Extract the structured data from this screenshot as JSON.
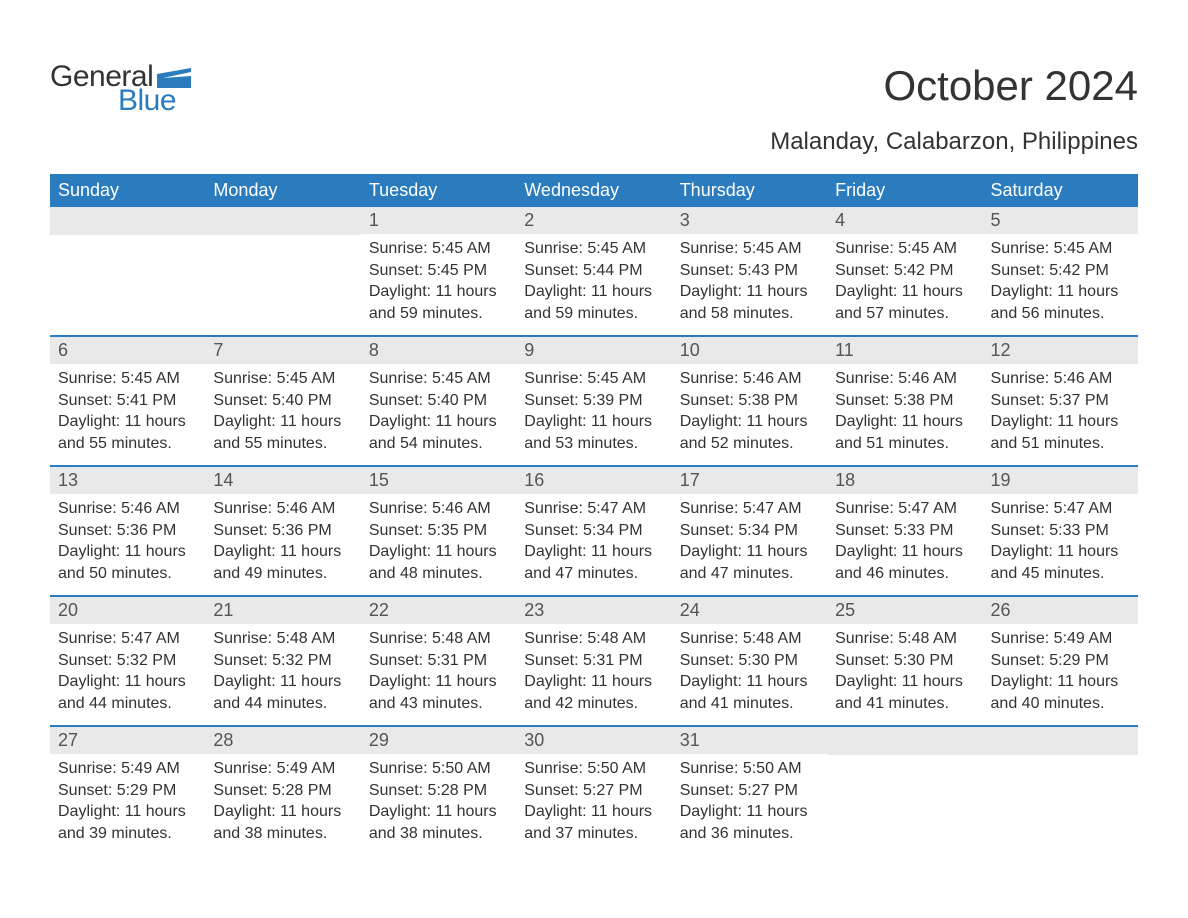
{
  "logo": {
    "word1": "General",
    "word2": "Blue",
    "color_text": "#333333",
    "color_accent": "#2b7bbf"
  },
  "title": "October 2024",
  "subtitle": "Malanday, Calabarzon, Philippines",
  "colors": {
    "header_bg": "#2b7bbf",
    "header_text": "#ffffff",
    "daynum_bg": "#e9e9e9",
    "body_text": "#333333",
    "page_bg": "#ffffff",
    "week_border": "#2b7bbf"
  },
  "fonts": {
    "title_size": 42,
    "subtitle_size": 24,
    "header_size": 18,
    "daynum_size": 18,
    "body_size": 16
  },
  "day_headers": [
    "Sunday",
    "Monday",
    "Tuesday",
    "Wednesday",
    "Thursday",
    "Friday",
    "Saturday"
  ],
  "weeks": [
    [
      {
        "day": "",
        "sunrise": "",
        "sunset": "",
        "daylight": ""
      },
      {
        "day": "",
        "sunrise": "",
        "sunset": "",
        "daylight": ""
      },
      {
        "day": "1",
        "sunrise": "Sunrise: 5:45 AM",
        "sunset": "Sunset: 5:45 PM",
        "daylight": "Daylight: 11 hours and 59 minutes."
      },
      {
        "day": "2",
        "sunrise": "Sunrise: 5:45 AM",
        "sunset": "Sunset: 5:44 PM",
        "daylight": "Daylight: 11 hours and 59 minutes."
      },
      {
        "day": "3",
        "sunrise": "Sunrise: 5:45 AM",
        "sunset": "Sunset: 5:43 PM",
        "daylight": "Daylight: 11 hours and 58 minutes."
      },
      {
        "day": "4",
        "sunrise": "Sunrise: 5:45 AM",
        "sunset": "Sunset: 5:42 PM",
        "daylight": "Daylight: 11 hours and 57 minutes."
      },
      {
        "day": "5",
        "sunrise": "Sunrise: 5:45 AM",
        "sunset": "Sunset: 5:42 PM",
        "daylight": "Daylight: 11 hours and 56 minutes."
      }
    ],
    [
      {
        "day": "6",
        "sunrise": "Sunrise: 5:45 AM",
        "sunset": "Sunset: 5:41 PM",
        "daylight": "Daylight: 11 hours and 55 minutes."
      },
      {
        "day": "7",
        "sunrise": "Sunrise: 5:45 AM",
        "sunset": "Sunset: 5:40 PM",
        "daylight": "Daylight: 11 hours and 55 minutes."
      },
      {
        "day": "8",
        "sunrise": "Sunrise: 5:45 AM",
        "sunset": "Sunset: 5:40 PM",
        "daylight": "Daylight: 11 hours and 54 minutes."
      },
      {
        "day": "9",
        "sunrise": "Sunrise: 5:45 AM",
        "sunset": "Sunset: 5:39 PM",
        "daylight": "Daylight: 11 hours and 53 minutes."
      },
      {
        "day": "10",
        "sunrise": "Sunrise: 5:46 AM",
        "sunset": "Sunset: 5:38 PM",
        "daylight": "Daylight: 11 hours and 52 minutes."
      },
      {
        "day": "11",
        "sunrise": "Sunrise: 5:46 AM",
        "sunset": "Sunset: 5:38 PM",
        "daylight": "Daylight: 11 hours and 51 minutes."
      },
      {
        "day": "12",
        "sunrise": "Sunrise: 5:46 AM",
        "sunset": "Sunset: 5:37 PM",
        "daylight": "Daylight: 11 hours and 51 minutes."
      }
    ],
    [
      {
        "day": "13",
        "sunrise": "Sunrise: 5:46 AM",
        "sunset": "Sunset: 5:36 PM",
        "daylight": "Daylight: 11 hours and 50 minutes."
      },
      {
        "day": "14",
        "sunrise": "Sunrise: 5:46 AM",
        "sunset": "Sunset: 5:36 PM",
        "daylight": "Daylight: 11 hours and 49 minutes."
      },
      {
        "day": "15",
        "sunrise": "Sunrise: 5:46 AM",
        "sunset": "Sunset: 5:35 PM",
        "daylight": "Daylight: 11 hours and 48 minutes."
      },
      {
        "day": "16",
        "sunrise": "Sunrise: 5:47 AM",
        "sunset": "Sunset: 5:34 PM",
        "daylight": "Daylight: 11 hours and 47 minutes."
      },
      {
        "day": "17",
        "sunrise": "Sunrise: 5:47 AM",
        "sunset": "Sunset: 5:34 PM",
        "daylight": "Daylight: 11 hours and 47 minutes."
      },
      {
        "day": "18",
        "sunrise": "Sunrise: 5:47 AM",
        "sunset": "Sunset: 5:33 PM",
        "daylight": "Daylight: 11 hours and 46 minutes."
      },
      {
        "day": "19",
        "sunrise": "Sunrise: 5:47 AM",
        "sunset": "Sunset: 5:33 PM",
        "daylight": "Daylight: 11 hours and 45 minutes."
      }
    ],
    [
      {
        "day": "20",
        "sunrise": "Sunrise: 5:47 AM",
        "sunset": "Sunset: 5:32 PM",
        "daylight": "Daylight: 11 hours and 44 minutes."
      },
      {
        "day": "21",
        "sunrise": "Sunrise: 5:48 AM",
        "sunset": "Sunset: 5:32 PM",
        "daylight": "Daylight: 11 hours and 44 minutes."
      },
      {
        "day": "22",
        "sunrise": "Sunrise: 5:48 AM",
        "sunset": "Sunset: 5:31 PM",
        "daylight": "Daylight: 11 hours and 43 minutes."
      },
      {
        "day": "23",
        "sunrise": "Sunrise: 5:48 AM",
        "sunset": "Sunset: 5:31 PM",
        "daylight": "Daylight: 11 hours and 42 minutes."
      },
      {
        "day": "24",
        "sunrise": "Sunrise: 5:48 AM",
        "sunset": "Sunset: 5:30 PM",
        "daylight": "Daylight: 11 hours and 41 minutes."
      },
      {
        "day": "25",
        "sunrise": "Sunrise: 5:48 AM",
        "sunset": "Sunset: 5:30 PM",
        "daylight": "Daylight: 11 hours and 41 minutes."
      },
      {
        "day": "26",
        "sunrise": "Sunrise: 5:49 AM",
        "sunset": "Sunset: 5:29 PM",
        "daylight": "Daylight: 11 hours and 40 minutes."
      }
    ],
    [
      {
        "day": "27",
        "sunrise": "Sunrise: 5:49 AM",
        "sunset": "Sunset: 5:29 PM",
        "daylight": "Daylight: 11 hours and 39 minutes."
      },
      {
        "day": "28",
        "sunrise": "Sunrise: 5:49 AM",
        "sunset": "Sunset: 5:28 PM",
        "daylight": "Daylight: 11 hours and 38 minutes."
      },
      {
        "day": "29",
        "sunrise": "Sunrise: 5:50 AM",
        "sunset": "Sunset: 5:28 PM",
        "daylight": "Daylight: 11 hours and 38 minutes."
      },
      {
        "day": "30",
        "sunrise": "Sunrise: 5:50 AM",
        "sunset": "Sunset: 5:27 PM",
        "daylight": "Daylight: 11 hours and 37 minutes."
      },
      {
        "day": "31",
        "sunrise": "Sunrise: 5:50 AM",
        "sunset": "Sunset: 5:27 PM",
        "daylight": "Daylight: 11 hours and 36 minutes."
      },
      {
        "day": "",
        "sunrise": "",
        "sunset": "",
        "daylight": ""
      },
      {
        "day": "",
        "sunrise": "",
        "sunset": "",
        "daylight": ""
      }
    ]
  ]
}
